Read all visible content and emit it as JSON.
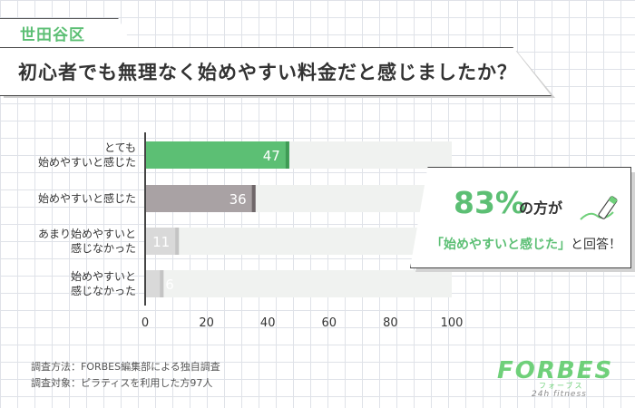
{
  "region_tag": "世田谷区",
  "question": "初心者でも無理なく始めやすい料金だと感じましたか？",
  "callout": {
    "percent": "83%",
    "percent_suffix": "の方が",
    "phrase": "「始めやすいと感じた」",
    "suffix": "と回答！"
  },
  "footnotes": [
    "調査方法：FORBES編集部による独自調査",
    "調査対象：ピラティスを利用した方97人"
  ],
  "logo": {
    "main": "FORBES",
    "sub": "フォーブス",
    "sub2": "24h fitness"
  },
  "colors": {
    "accent": "#5cbf74",
    "dark_bar": "#a9a2a4",
    "light_bar": "#d9d9d9",
    "track": "#f0f2f0"
  },
  "chart_data": {
    "type": "bar",
    "orientation": "horizontal",
    "categories": [
      "とても\n始めやすいと感じた",
      "始めやすいと感じた",
      "あまり始めやすいと\n感じなかった",
      "始めやすいと\n感じなかった"
    ],
    "values": [
      47,
      36,
      11,
      6
    ],
    "xlim": [
      0,
      100
    ],
    "xticks": [
      0,
      20,
      40,
      60,
      80,
      100
    ],
    "bar_colors": [
      "#5cbf74",
      "#a9a2a4",
      "#d9d9d9",
      "#d9d9d9"
    ],
    "grid": false,
    "legend": "none"
  }
}
